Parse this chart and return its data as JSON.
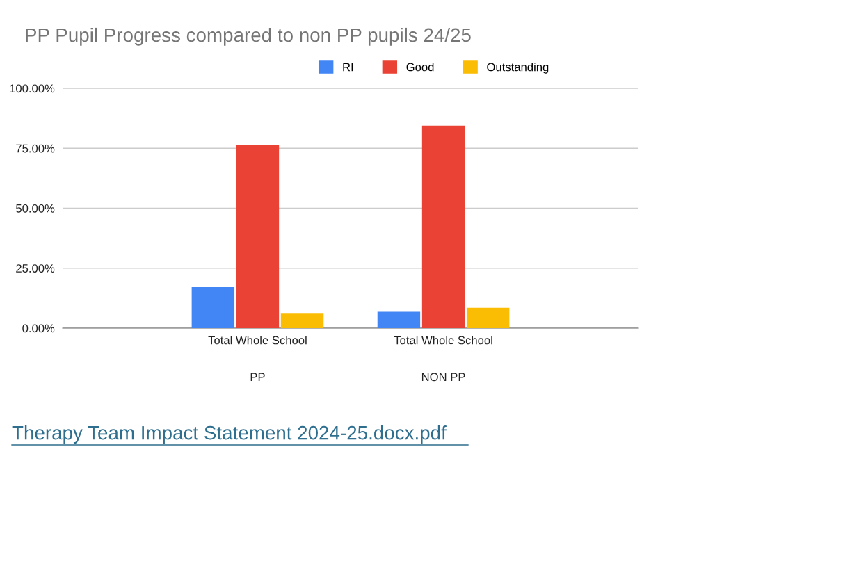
{
  "chart_data": {
    "type": "bar",
    "title": "PP Pupil Progress compared to non PP pupils 24/25",
    "categories": [
      "Total Whole School\n\nPP",
      "Total Whole School\n\nNON PP"
    ],
    "series": [
      {
        "name": "RI",
        "color": "#4285f4",
        "values": [
          17.1,
          6.8
        ]
      },
      {
        "name": "Good",
        "color": "#ea4335",
        "values": [
          76.3,
          84.4
        ]
      },
      {
        "name": "Outstanding",
        "color": "#fbbc04",
        "values": [
          6.3,
          8.5
        ]
      }
    ],
    "ylim": [
      0,
      100
    ],
    "yticks": [
      {
        "value": 0,
        "label": "0.00%"
      },
      {
        "value": 25,
        "label": "25.00%"
      },
      {
        "value": 50,
        "label": "50.00%"
      },
      {
        "value": 75,
        "label": "75.00%"
      },
      {
        "value": 100,
        "label": "100.00%"
      }
    ],
    "grid": "y",
    "legend": "top",
    "annotations": [
      "Therapy Team Impact Statement 2024-25.docx.pdf"
    ]
  }
}
